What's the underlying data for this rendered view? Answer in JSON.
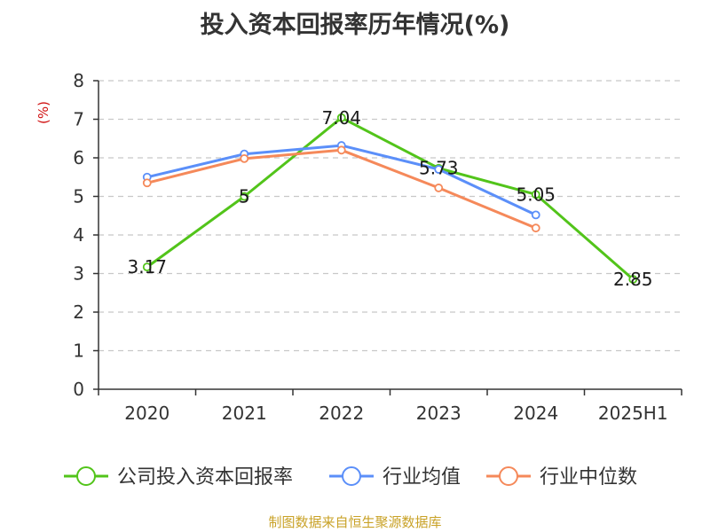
{
  "chart_data": {
    "type": "line",
    "title": "投入资本回报率历年情况(%)",
    "ylabel": "(%)",
    "categories": [
      "2020",
      "2021",
      "2022",
      "2023",
      "2024",
      "2025H1"
    ],
    "ylim": [
      0,
      8
    ],
    "yticks": [
      0,
      1,
      2,
      3,
      4,
      5,
      6,
      7,
      8
    ],
    "grid": true,
    "legend_position": "bottom",
    "series": [
      {
        "name": "公司投入资本回报率",
        "color": "#52c41a",
        "values": [
          3.17,
          5,
          7.04,
          5.73,
          5.05,
          2.85
        ],
        "data_labels": [
          "3.17",
          "5",
          "7.04",
          "5.73",
          "5.05",
          "2.85"
        ]
      },
      {
        "name": "行业均值",
        "color": "#5b8ff9",
        "values": [
          5.5,
          6.1,
          6.32,
          5.7,
          4.52,
          null
        ]
      },
      {
        "name": "行业中位数",
        "color": "#f5895a",
        "values": [
          5.35,
          5.98,
          6.2,
          5.22,
          4.18,
          null
        ]
      }
    ]
  },
  "footer": {
    "source": "制图数据来自恒生聚源数据库"
  }
}
